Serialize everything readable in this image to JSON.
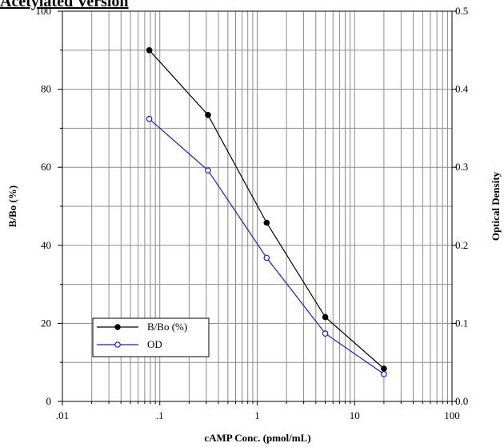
{
  "chart_data": {
    "type": "line",
    "title": "Acetylated Version",
    "xlabel": "cAMP Conc. (pmol/mL)",
    "ylabel": "B/Bo (%)",
    "y2label": "Optical Density",
    "xscale": "log",
    "xlim": [
      0.01,
      100
    ],
    "ylim": [
      0,
      100
    ],
    "y2lim": [
      0.0,
      0.5
    ],
    "grid": true,
    "legend_position": "bottom-left",
    "x_tick_labels": [
      ".01",
      ".1",
      "1",
      "10",
      "100"
    ],
    "y_tick_labels": [
      "0",
      "20",
      "40",
      "60",
      "80",
      "100"
    ],
    "y2_tick_labels": [
      "0.0",
      "0.1",
      "0.2",
      "0.3",
      "0.4",
      "0.5"
    ],
    "series": [
      {
        "name": "B/Bo (%)",
        "axis": "left",
        "color": "#000000",
        "marker": "filled-circle",
        "x": [
          0.078,
          0.3125,
          1.25,
          5,
          20
        ],
        "y": [
          90,
          73.4,
          45.8,
          21.6,
          8.4
        ]
      },
      {
        "name": "OD",
        "axis": "right",
        "color": "#1a1acc",
        "marker": "open-circle",
        "x": [
          0.078,
          0.3125,
          1.25,
          5,
          20
        ],
        "y": [
          0.362,
          0.296,
          0.184,
          0.087,
          0.035
        ]
      }
    ]
  }
}
